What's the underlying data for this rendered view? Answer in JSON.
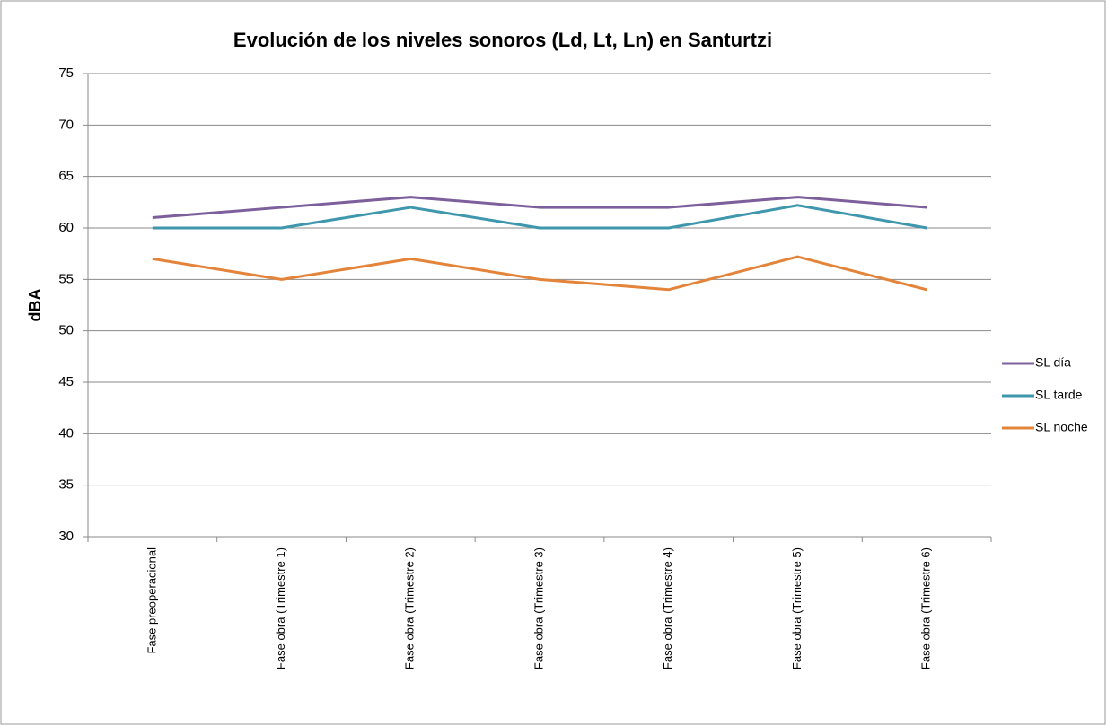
{
  "chart_data": {
    "type": "line",
    "title": "Evolución de los niveles sonoros (Ld, Lt, Ln) en Santurtzi",
    "y_label": "dBA",
    "categories": [
      "Fase preoperacional",
      "Fase obra (Trimestre 1)",
      "Fase obra (Trimestre 2)",
      "Fase obra (Trimestre 3)",
      "Fase obra (Trimestre 4)",
      "Fase obra (Trimestre 5)",
      "Fase obra (Trimestre 6)"
    ],
    "series": [
      {
        "name": "SL día",
        "color": "#7d5f9c",
        "values": [
          61,
          62,
          63,
          62,
          62,
          63,
          62
        ]
      },
      {
        "name": "SL tarde",
        "color": "#3f97ad",
        "values": [
          60,
          60,
          62,
          60,
          60,
          62.2,
          60
        ]
      },
      {
        "name": "SL noche",
        "color": "#e4843a",
        "values": [
          57,
          55,
          57,
          55,
          54,
          57.2,
          54
        ]
      }
    ],
    "ylim": [
      30,
      75
    ],
    "yticks": [
      30,
      35,
      40,
      45,
      50,
      55,
      60,
      65,
      70,
      75
    ],
    "grid": true,
    "legend": "right"
  }
}
